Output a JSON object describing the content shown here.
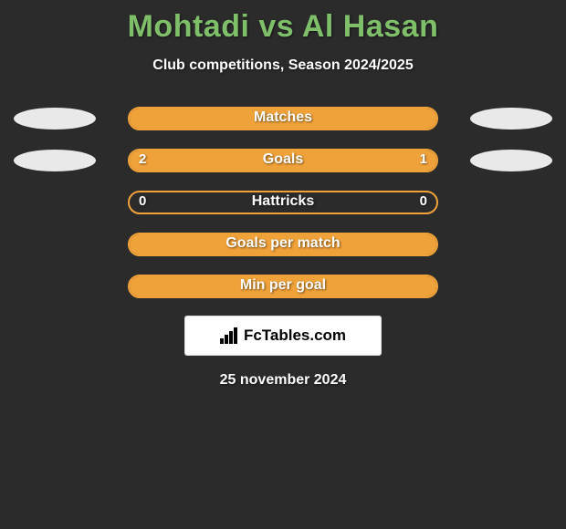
{
  "background_color": "#2b2b2b",
  "title": {
    "text": "Mohtadi vs Al Hasan",
    "color": "#7fbf6a"
  },
  "subtitle": {
    "text": "Club competitions, Season 2024/2025",
    "color": "#ffffff"
  },
  "left_dot_color": "#e9e9e9",
  "right_dot_color": "#e9e9e9",
  "bars": {
    "track_bg": "#2b2b2b",
    "border_color": "#f0a23a",
    "fill_left_color": "#f0a23a",
    "fill_right_color": "#f0a23a",
    "label_color": "#ffffff",
    "value_color": "#ffffff",
    "rows": [
      {
        "label": "Matches",
        "left_value": "",
        "right_value": "",
        "left_fill_pct": 100,
        "right_fill_pct": 0,
        "show_dots": true
      },
      {
        "label": "Goals",
        "left_value": "2",
        "right_value": "1",
        "left_fill_pct": 66,
        "right_fill_pct": 34,
        "show_dots": true
      },
      {
        "label": "Hattricks",
        "left_value": "0",
        "right_value": "0",
        "left_fill_pct": 0,
        "right_fill_pct": 0,
        "show_dots": false
      },
      {
        "label": "Goals per match",
        "left_value": "",
        "right_value": "",
        "left_fill_pct": 100,
        "right_fill_pct": 0,
        "show_dots": false
      },
      {
        "label": "Min per goal",
        "left_value": "",
        "right_value": "",
        "left_fill_pct": 100,
        "right_fill_pct": 0,
        "show_dots": false
      }
    ]
  },
  "brand": {
    "box_bg": "#ffffff",
    "text": "FcTables.com"
  },
  "date": {
    "text": "25 november 2024",
    "color": "#ffffff"
  }
}
